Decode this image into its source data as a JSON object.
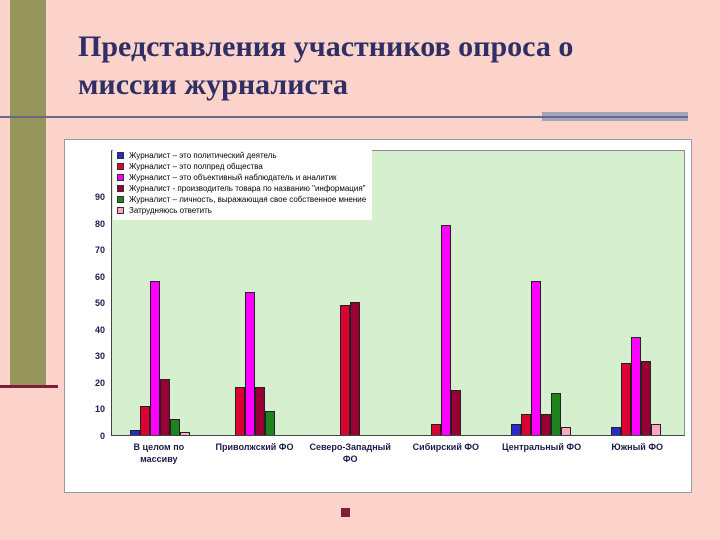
{
  "slide": {
    "title": "Представления участников опроса о миссии журналиста",
    "bg_color": "#FBD3CA",
    "accent_band_color": "#95955C",
    "accent_line_color": "#7D1F3C",
    "title_color": "#2F2F66"
  },
  "chart_data": {
    "type": "bar",
    "title": "",
    "xlabel": "",
    "ylabel": "",
    "ylim": [
      0,
      90
    ],
    "yticks": [
      0,
      10,
      20,
      30,
      40,
      50,
      60,
      70,
      80,
      90
    ],
    "grid": false,
    "legend_position": "top-left",
    "plot_bg": "#D6EFCE",
    "categories": [
      "В целом по массиву",
      "Приволжский ФО",
      "Северо-Западный ФО",
      "Сибирский ФО",
      "Центральный ФО",
      "Южный ФО"
    ],
    "series": [
      {
        "name": "Журналист – это политический деятель",
        "color": "#2929CC",
        "values": [
          2,
          0,
          0,
          0,
          4,
          3
        ]
      },
      {
        "name": "Журналист – это полпред общества",
        "color": "#DD0033",
        "values": [
          11,
          18,
          49,
          4,
          8,
          27
        ]
      },
      {
        "name": "Журналист – это объективный наблюдатель и аналитик",
        "color": "#FF00FF",
        "values": [
          58,
          54,
          0,
          79,
          58,
          37
        ]
      },
      {
        "name": "Журналист - производитель товара по названию \"информация\"",
        "color": "#990033",
        "values": [
          21,
          18,
          50,
          17,
          8,
          28
        ]
      },
      {
        "name": "Журналист – личность, выражающая свое собственное мнение",
        "color": "#1E821E",
        "values": [
          6,
          9,
          0,
          0,
          16,
          0
        ]
      },
      {
        "name": "Затрудняюсь ответить",
        "color": "#FFA8C0",
        "values": [
          1,
          0,
          0,
          0,
          3,
          4
        ]
      }
    ]
  }
}
